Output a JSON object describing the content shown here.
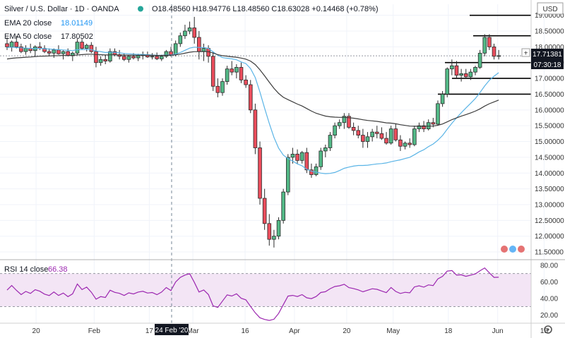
{
  "header": {
    "symbol": "Silver / U.S. Dollar · 1D · OANDA",
    "ohlc": "O18.48560  H18.94776  L18.48560  C18.63028  +0.14468 (+0.78%)",
    "ema20_label": "EMA 20 close",
    "ema20_value": "18.01149",
    "ema50_label": "EMA 50 close",
    "ema50_value": "17.80502"
  },
  "price_axis": {
    "currency": "USD",
    "last_price": "17.71381",
    "countdown": "07:30:18"
  },
  "rsi_panel": {
    "label": "RSI 14 close",
    "value": "66.38"
  },
  "crosshair_date": "24 Feb '20",
  "colors": {
    "up": "#53b987",
    "down": "#eb4d5c",
    "ema20": "#5ab4e6",
    "ema50": "#3c3c3c",
    "rsi": "#9c27b0",
    "rsi_band": "#f3e5f5"
  },
  "chart_data": {
    "type": "candlestick",
    "x_tick_labels": [
      "20",
      "Feb",
      "17",
      "Mar",
      "16",
      "Apr",
      "20",
      "May",
      "18",
      "Jun",
      "15"
    ],
    "y_tick_labels": [
      "11.50000",
      "12.00000",
      "12.50000",
      "13.00000",
      "13.50000",
      "14.00000",
      "14.50000",
      "15.00000",
      "15.50000",
      "16.00000",
      "16.50000",
      "17.00000",
      "17.50000",
      "18.00000",
      "18.50000",
      "19.00000"
    ],
    "ylim": [
      11.3,
      19.35
    ],
    "rsi_ticks": [
      "20.00",
      "40.00",
      "60.00",
      "80.00"
    ],
    "rsi_lim": [
      10,
      85
    ],
    "rsi_band": [
      30,
      70
    ],
    "horizontal_levels": [
      19.0,
      18.35,
      17.5,
      17.0,
      16.5
    ],
    "candles": [
      [
        18.1,
        18.3,
        17.9,
        18.0
      ],
      [
        18.0,
        18.2,
        17.85,
        18.15
      ],
      [
        18.15,
        18.35,
        17.95,
        18.0
      ],
      [
        18.0,
        18.1,
        17.8,
        17.85
      ],
      [
        17.85,
        18.05,
        17.75,
        17.95
      ],
      [
        17.95,
        18.1,
        17.8,
        17.88
      ],
      [
        17.88,
        18.05,
        17.7,
        18.0
      ],
      [
        18.0,
        18.15,
        17.9,
        17.95
      ],
      [
        17.95,
        18.05,
        17.8,
        17.85
      ],
      [
        17.85,
        17.95,
        17.7,
        17.8
      ],
      [
        17.8,
        17.95,
        17.65,
        17.9
      ],
      [
        17.9,
        18.05,
        17.75,
        17.78
      ],
      [
        17.78,
        17.9,
        17.6,
        17.85
      ],
      [
        17.85,
        17.95,
        17.7,
        17.72
      ],
      [
        17.72,
        17.85,
        17.55,
        17.8
      ],
      [
        17.8,
        18.25,
        17.75,
        18.15
      ],
      [
        18.15,
        18.25,
        17.9,
        17.95
      ],
      [
        17.95,
        18.1,
        17.85,
        18.05
      ],
      [
        18.05,
        18.15,
        17.8,
        17.85
      ],
      [
        17.85,
        18.0,
        17.35,
        17.5
      ],
      [
        17.5,
        17.7,
        17.4,
        17.6
      ],
      [
        17.6,
        17.75,
        17.45,
        17.55
      ],
      [
        17.55,
        17.95,
        17.5,
        17.85
      ],
      [
        17.85,
        17.95,
        17.7,
        17.75
      ],
      [
        17.75,
        17.9,
        17.6,
        17.7
      ],
      [
        17.7,
        17.8,
        17.55,
        17.6
      ],
      [
        17.6,
        17.75,
        17.5,
        17.7
      ],
      [
        17.7,
        17.8,
        17.6,
        17.65
      ],
      [
        17.65,
        17.78,
        17.55,
        17.72
      ],
      [
        17.72,
        17.85,
        17.6,
        17.75
      ],
      [
        17.75,
        17.85,
        17.65,
        17.68
      ],
      [
        17.68,
        17.8,
        17.6,
        17.7
      ],
      [
        17.7,
        17.82,
        17.58,
        17.62
      ],
      [
        17.62,
        17.75,
        17.55,
        17.7
      ],
      [
        17.7,
        17.9,
        17.65,
        17.85
      ],
      [
        17.85,
        18.0,
        17.7,
        17.75
      ],
      [
        17.75,
        18.2,
        17.7,
        18.1
      ],
      [
        18.1,
        18.45,
        18.0,
        18.35
      ],
      [
        18.35,
        18.7,
        18.25,
        18.5
      ],
      [
        18.5,
        18.8,
        18.4,
        18.6
      ],
      [
        18.6,
        18.95,
        18.1,
        18.3
      ],
      [
        18.3,
        18.5,
        17.6,
        17.85
      ],
      [
        17.85,
        18.1,
        17.55,
        17.95
      ],
      [
        17.95,
        18.05,
        17.5,
        17.7
      ],
      [
        17.7,
        17.85,
        16.6,
        16.75
      ],
      [
        16.75,
        17.0,
        16.4,
        16.55
      ],
      [
        16.55,
        17.0,
        16.45,
        16.9
      ],
      [
        16.9,
        17.4,
        16.8,
        17.3
      ],
      [
        17.3,
        17.55,
        17.1,
        17.2
      ],
      [
        17.2,
        17.45,
        17.0,
        17.35
      ],
      [
        17.35,
        17.5,
        16.85,
        16.95
      ],
      [
        16.95,
        17.1,
        16.7,
        16.8
      ],
      [
        16.8,
        16.95,
        15.9,
        16.0
      ],
      [
        16.0,
        16.2,
        14.6,
        14.8
      ],
      [
        14.8,
        15.0,
        13.0,
        13.2
      ],
      [
        13.2,
        13.5,
        12.2,
        12.4
      ],
      [
        12.4,
        12.7,
        11.7,
        11.9
      ],
      [
        11.9,
        12.2,
        11.64,
        12.0
      ],
      [
        12.0,
        12.6,
        11.9,
        12.5
      ],
      [
        12.5,
        13.5,
        12.4,
        13.4
      ],
      [
        13.4,
        14.6,
        13.3,
        14.5
      ],
      [
        14.5,
        14.8,
        14.3,
        14.6
      ],
      [
        14.6,
        14.75,
        14.3,
        14.4
      ],
      [
        14.4,
        14.7,
        14.3,
        14.65
      ],
      [
        14.65,
        14.8,
        14.0,
        14.1
      ],
      [
        14.1,
        14.3,
        13.85,
        13.95
      ],
      [
        13.95,
        14.3,
        13.9,
        14.2
      ],
      [
        14.2,
        14.8,
        14.1,
        14.7
      ],
      [
        14.7,
        14.9,
        14.5,
        14.8
      ],
      [
        14.8,
        15.3,
        14.7,
        15.2
      ],
      [
        15.2,
        15.6,
        15.1,
        15.5
      ],
      [
        15.5,
        15.7,
        15.4,
        15.6
      ],
      [
        15.6,
        15.9,
        15.4,
        15.8
      ],
      [
        15.8,
        15.9,
        15.4,
        15.45
      ],
      [
        15.45,
        15.6,
        15.2,
        15.35
      ],
      [
        15.35,
        15.5,
        15.1,
        15.2
      ],
      [
        15.2,
        15.4,
        14.8,
        15.0
      ],
      [
        15.0,
        15.3,
        14.8,
        15.15
      ],
      [
        15.15,
        15.4,
        15.0,
        15.3
      ],
      [
        15.3,
        15.5,
        15.1,
        15.25
      ],
      [
        15.25,
        15.45,
        15.05,
        15.1
      ],
      [
        15.1,
        15.3,
        14.9,
        14.95
      ],
      [
        14.95,
        15.5,
        14.9,
        15.4
      ],
      [
        15.4,
        15.55,
        15.0,
        15.05
      ],
      [
        15.05,
        15.2,
        14.7,
        14.85
      ],
      [
        14.85,
        15.0,
        14.75,
        14.95
      ],
      [
        14.95,
        15.1,
        14.8,
        14.9
      ],
      [
        14.9,
        15.5,
        14.85,
        15.4
      ],
      [
        15.4,
        15.6,
        15.3,
        15.5
      ],
      [
        15.5,
        15.65,
        15.3,
        15.4
      ],
      [
        15.4,
        15.7,
        15.35,
        15.6
      ],
      [
        15.6,
        15.75,
        15.45,
        15.55
      ],
      [
        15.55,
        16.3,
        15.5,
        16.2
      ],
      [
        16.2,
        16.6,
        16.1,
        16.5
      ],
      [
        16.5,
        17.35,
        16.4,
        17.3
      ],
      [
        17.3,
        17.6,
        17.1,
        17.4
      ],
      [
        17.4,
        17.55,
        17.0,
        17.1
      ],
      [
        17.1,
        17.3,
        16.9,
        17.15
      ],
      [
        17.15,
        17.3,
        17.0,
        17.05
      ],
      [
        17.05,
        17.3,
        16.95,
        17.2
      ],
      [
        17.2,
        17.4,
        17.1,
        17.35
      ],
      [
        17.35,
        17.9,
        17.3,
        17.8
      ],
      [
        17.8,
        18.4,
        17.7,
        18.3
      ],
      [
        18.3,
        18.4,
        17.9,
        18.0
      ],
      [
        18.0,
        18.1,
        17.6,
        17.7
      ],
      [
        17.7,
        17.9,
        17.6,
        17.72
      ]
    ],
    "ema20": [
      17.98,
      17.99,
      17.98,
      17.97,
      17.96,
      17.95,
      17.95,
      17.95,
      17.94,
      17.93,
      17.92,
      17.91,
      17.9,
      17.89,
      17.88,
      17.91,
      17.91,
      17.92,
      17.91,
      17.87,
      17.85,
      17.82,
      17.83,
      17.82,
      17.81,
      17.79,
      17.78,
      17.77,
      17.76,
      17.76,
      17.75,
      17.74,
      17.73,
      17.73,
      17.74,
      17.74,
      17.77,
      17.82,
      17.89,
      17.96,
      17.99,
      17.98,
      17.98,
      17.95,
      17.84,
      17.73,
      17.66,
      17.64,
      17.62,
      17.59,
      17.52,
      17.47,
      17.31,
      17.03,
      16.57,
      16.06,
      15.57,
      15.13,
      14.79,
      14.57,
      14.46,
      14.38,
      14.29,
      14.23,
      14.12,
      14.06,
      14.03,
      14.0,
      13.98,
      13.99,
      14.02,
      14.08,
      14.15,
      14.19,
      14.22,
      14.24,
      14.24,
      14.25,
      14.27,
      14.29,
      14.3,
      14.32,
      14.36,
      14.39,
      14.42,
      14.46,
      14.5,
      14.58,
      14.67,
      14.74,
      14.84,
      14.92,
      15.04,
      15.19,
      15.39,
      15.58,
      15.75,
      15.91,
      16.06,
      16.21,
      16.36,
      16.55,
      16.76,
      16.94,
      17.07,
      17.18
    ]
  }
}
